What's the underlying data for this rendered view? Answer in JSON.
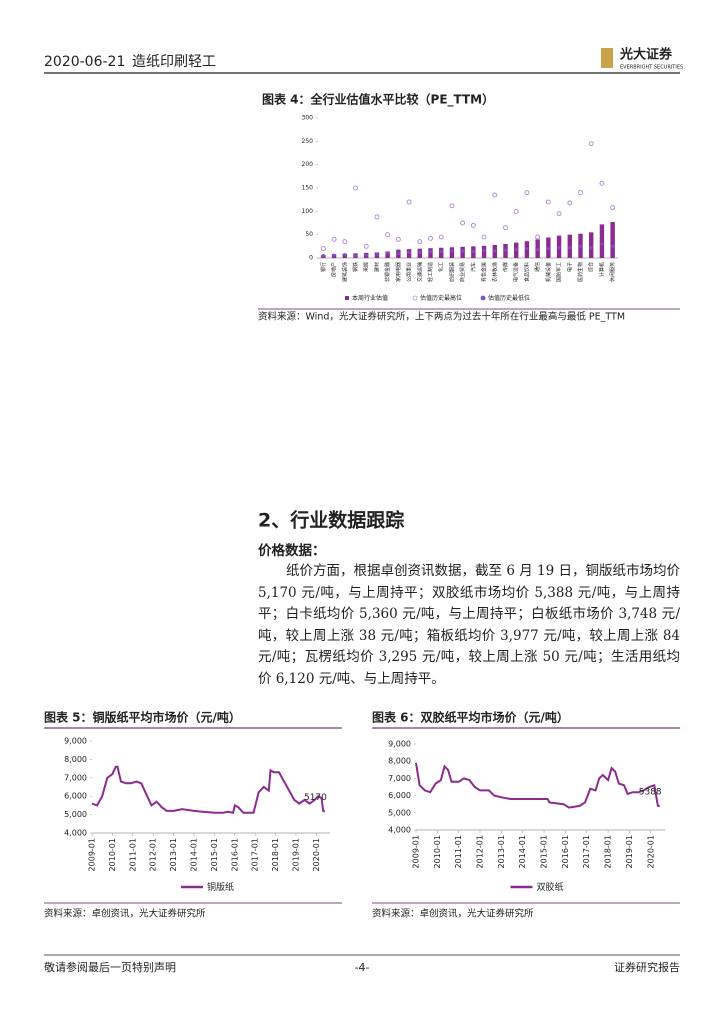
{
  "header": {
    "date": "2020-06-21",
    "sector": "造纸印刷轻工",
    "logo": "光大证券",
    "logo_en": "EVERBRIGHT SECURITIES"
  },
  "section": {
    "heading": "2、行业数据跟踪",
    "subheading": "价格数据：",
    "paragraph": "纸价方面，根据卓创资讯数据，截至 6 月 19 日，铜版纸市场均价 5,170 元/吨，与上周持平；双胶纸市场均价 5,388 元/吨，与上周持平；白卡纸均价 5,360 元/吨，与上周持平；白板纸市场价 3,748 元/吨，较上周上涨 38 元/吨；箱板纸均价 3,977 元/吨，较上周上涨 84 元/吨；瓦楞纸均价 3,295 元/吨，较上周上涨 50 元/吨；生活用纸均价 6,120 元/吨、与上周持平。"
  },
  "footer": {
    "left": "敬请参阅最后一页特别声明",
    "center": "-4-",
    "right": "证券研究报告"
  },
  "chart_data": [
    {
      "type": "bar",
      "title": "图表 4：全行业估值水平比较（PE_TTM）",
      "source": "资料来源：Wind，光大证券研究所，上下两点为过去十年所在行业最高与最低 PE_TTM",
      "categories": [
        "银行",
        "房地产",
        "建筑装饰",
        "钢铁",
        "采掘",
        "建材",
        "非银金融",
        "家用电器",
        "公用事业",
        "交通运输",
        "轻工制造",
        "化工",
        "纺织服装",
        "商业贸易",
        "汽车",
        "有色金属",
        "农林牧渔",
        "传媒",
        "电气设备",
        "食品饮料",
        "通信",
        "机械设备",
        "国防军工",
        "电子",
        "医药生物",
        "综合",
        "计算机",
        "休闲服务"
      ],
      "series": [
        {
          "name": "本周行业估值",
          "color": "#8b2b8f",
          "marker": "bar",
          "values": [
            7,
            8,
            9,
            10,
            11,
            12,
            14,
            18,
            19,
            20,
            21,
            22,
            23,
            24,
            25,
            26,
            28,
            30,
            33,
            36,
            40,
            44,
            48,
            50,
            52,
            55,
            72,
            77
          ]
        },
        {
          "name": "估值历史最高位",
          "color": "#b58fd8",
          "marker": "circle-open",
          "values": [
            20,
            40,
            35,
            150,
            25,
            88,
            50,
            40,
            120,
            35,
            42,
            45,
            112,
            75,
            70,
            45,
            135,
            65,
            100,
            140,
            45,
            120,
            95,
            118,
            140,
            245,
            160,
            108
          ]
        },
        {
          "name": "估值历史最低位",
          "color": "#7b4fc8",
          "marker": "dot",
          "values": [
            5,
            6,
            7,
            5,
            6,
            8,
            10,
            10,
            12,
            12,
            14,
            14,
            15,
            15,
            14,
            16,
            15,
            17,
            18,
            20,
            18,
            20,
            22,
            22,
            25,
            22,
            30,
            25
          ]
        }
      ],
      "ylim": [
        0,
        300
      ],
      "yticks": [
        0,
        50,
        100,
        150,
        200,
        250,
        300
      ]
    },
    {
      "type": "line",
      "title": "图表 5：铜版纸平均市场价（元/吨）",
      "source": "资料来源：卓创资讯，光大证券研究所",
      "data_labels": "last",
      "x": [
        "2009-01",
        "2009-04",
        "2009-07",
        "2009-10",
        "2010-01",
        "2010-03",
        "2010-04",
        "2010-06",
        "2010-09",
        "2010-12",
        "2011-03",
        "2011-06",
        "2011-09",
        "2011-12",
        "2012-03",
        "2012-06",
        "2012-09",
        "2013-01",
        "2013-06",
        "2014-01",
        "2014-06",
        "2015-01",
        "2015-06",
        "2015-09",
        "2015-12",
        "2016-01",
        "2016-03",
        "2016-06",
        "2016-12",
        "2017-03",
        "2017-06",
        "2017-09",
        "2017-10",
        "2017-12",
        "2018-03",
        "2018-06",
        "2018-09",
        "2018-12",
        "2019-03",
        "2019-06",
        "2019-09",
        "2019-12",
        "2020-02",
        "2020-04",
        "2020-05",
        "2020-06"
      ],
      "series": [
        {
          "name": "铜版纸",
          "color": "#8b2b8f",
          "values": [
            5600,
            5500,
            6000,
            7000,
            7200,
            7600,
            7600,
            6800,
            6700,
            6700,
            6800,
            6700,
            6100,
            5500,
            5700,
            5400,
            5200,
            5200,
            5300,
            5200,
            5150,
            5100,
            5100,
            5150,
            5100,
            5500,
            5400,
            5100,
            5100,
            6200,
            6500,
            6300,
            7400,
            7300,
            7300,
            6800,
            6300,
            5800,
            5600,
            5800,
            5600,
            5800,
            6000,
            5900,
            5200,
            5170
          ]
        }
      ],
      "xlim": [
        "2009-01",
        "2020-09"
      ],
      "xticks": [
        "2009-01",
        "2010-01",
        "2011-01",
        "2012-01",
        "2013-01",
        "2014-01",
        "2015-01",
        "2016-01",
        "2017-01",
        "2018-01",
        "2019-01",
        "2020-01"
      ],
      "ylim": [
        4000,
        9000
      ],
      "yticks": [
        {
          "value": 4000,
          "label": "4,000"
        },
        {
          "value": 5000,
          "label": "5,000"
        },
        {
          "value": 6000,
          "label": "6,000"
        },
        {
          "value": 7000,
          "label": "7,000"
        },
        {
          "value": 8000,
          "label": "8,000"
        },
        {
          "value": 9000,
          "label": "9,000"
        }
      ]
    },
    {
      "type": "line",
      "title": "图表 6：双胶纸平均市场价（元/吨）",
      "source": "资料来源：卓创资讯，光大证券研究所",
      "data_labels": "last",
      "x": [
        "2009-01",
        "2009-03",
        "2009-06",
        "2009-09",
        "2009-12",
        "2010-03",
        "2010-05",
        "2010-07",
        "2010-09",
        "2011-01",
        "2011-04",
        "2011-07",
        "2011-10",
        "2012-01",
        "2012-06",
        "2012-09",
        "2013-01",
        "2013-06",
        "2014-01",
        "2014-06",
        "2015-01",
        "2015-03",
        "2015-04",
        "2015-12",
        "2016-03",
        "2016-09",
        "2016-12",
        "2017-03",
        "2017-06",
        "2017-08",
        "2017-10",
        "2018-01",
        "2018-03",
        "2018-05",
        "2018-07",
        "2018-10",
        "2018-12",
        "2019-03",
        "2019-06",
        "2019-09",
        "2019-12",
        "2020-03",
        "2020-05",
        "2020-06"
      ],
      "series": [
        {
          "name": "双胶纸",
          "color": "#8b2b8f",
          "values": [
            7900,
            6600,
            6300,
            6200,
            6700,
            6900,
            7700,
            7500,
            6800,
            6800,
            7000,
            6900,
            6500,
            6300,
            6300,
            6000,
            5900,
            5800,
            5800,
            5800,
            5800,
            5800,
            5600,
            5500,
            5300,
            5400,
            5600,
            6400,
            6300,
            7000,
            7200,
            6900,
            7600,
            7400,
            6700,
            6600,
            6100,
            6200,
            6200,
            6300,
            6500,
            6600,
            5400,
            5388
          ]
        }
      ],
      "xlim": [
        "2009-01",
        "2020-09"
      ],
      "xticks": [
        "2009-01",
        "2010-01",
        "2011-01",
        "2012-01",
        "2013-01",
        "2014-01",
        "2015-01",
        "2016-01",
        "2017-01",
        "2018-01",
        "2019-01",
        "2020-01"
      ],
      "ylim": [
        4000,
        9000
      ],
      "yticks": [
        {
          "value": 4000,
          "label": "4,000"
        },
        {
          "value": 5000,
          "label": "5,000"
        },
        {
          "value": 6000,
          "label": "6,000"
        },
        {
          "value": 7000,
          "label": "7,000"
        },
        {
          "value": 8000,
          "label": "8,000"
        },
        {
          "value": 9000,
          "label": "9,000"
        }
      ]
    }
  ]
}
